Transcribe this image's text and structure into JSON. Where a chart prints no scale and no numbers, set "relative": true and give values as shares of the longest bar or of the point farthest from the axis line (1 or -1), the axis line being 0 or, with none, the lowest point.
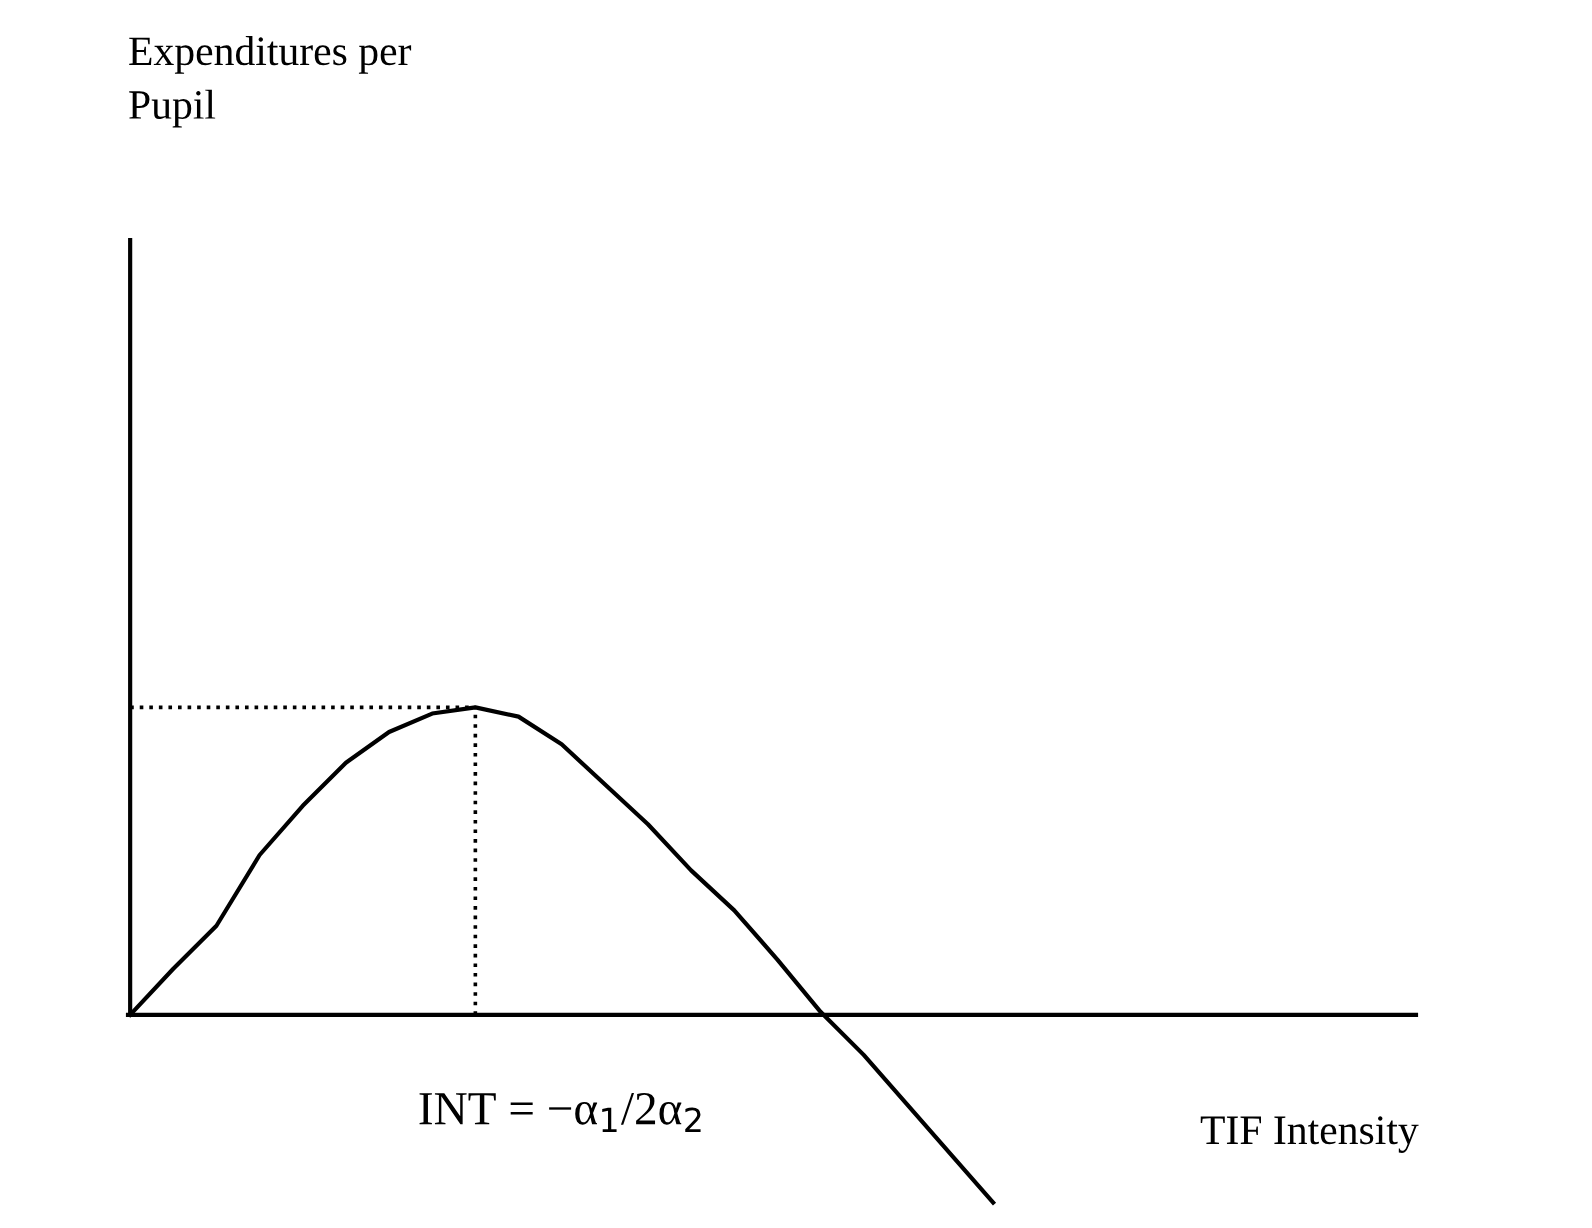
{
  "chart_data": {
    "type": "line",
    "relative": true,
    "xlabel": "TIF Intensity",
    "annotations": [
      "INT = −α$_{1}$/2α$_{2}$",
      "Expenditures per\nPupil"
    ],
    "categories": [
      null,
      null,
      null,
      null,
      null,
      null,
      null,
      null,
      null,
      null,
      null,
      null,
      null,
      null,
      null,
      null,
      null,
      null,
      null,
      null,
      null,
      null,
      null,
      null,
      null,
      null,
      null,
      null,
      null,
      null
    ],
    "series": [
      {
        "color": "#000000",
        "values": [
          0,
          0.15,
          0.29,
          0.52,
          0.68,
          0.82,
          0.92,
          0.98,
          1,
          0.97,
          0.88,
          0.75,
          0.62,
          0.47,
          0.34,
          0.18,
          0.01,
          -0.13,
          -0.29,
          -0.45,
          -0.61,
          null,
          null,
          null,
          null,
          null,
          null,
          null,
          null,
          null
        ]
      }
    ],
    "ref_lines": [
      {
        "axis": "y",
        "value": 1,
        "color": "#000000",
        "line_style": "dotted"
      }
    ],
    "legend": false,
    "marker": "none",
    "line_style": "solid"
  }
}
